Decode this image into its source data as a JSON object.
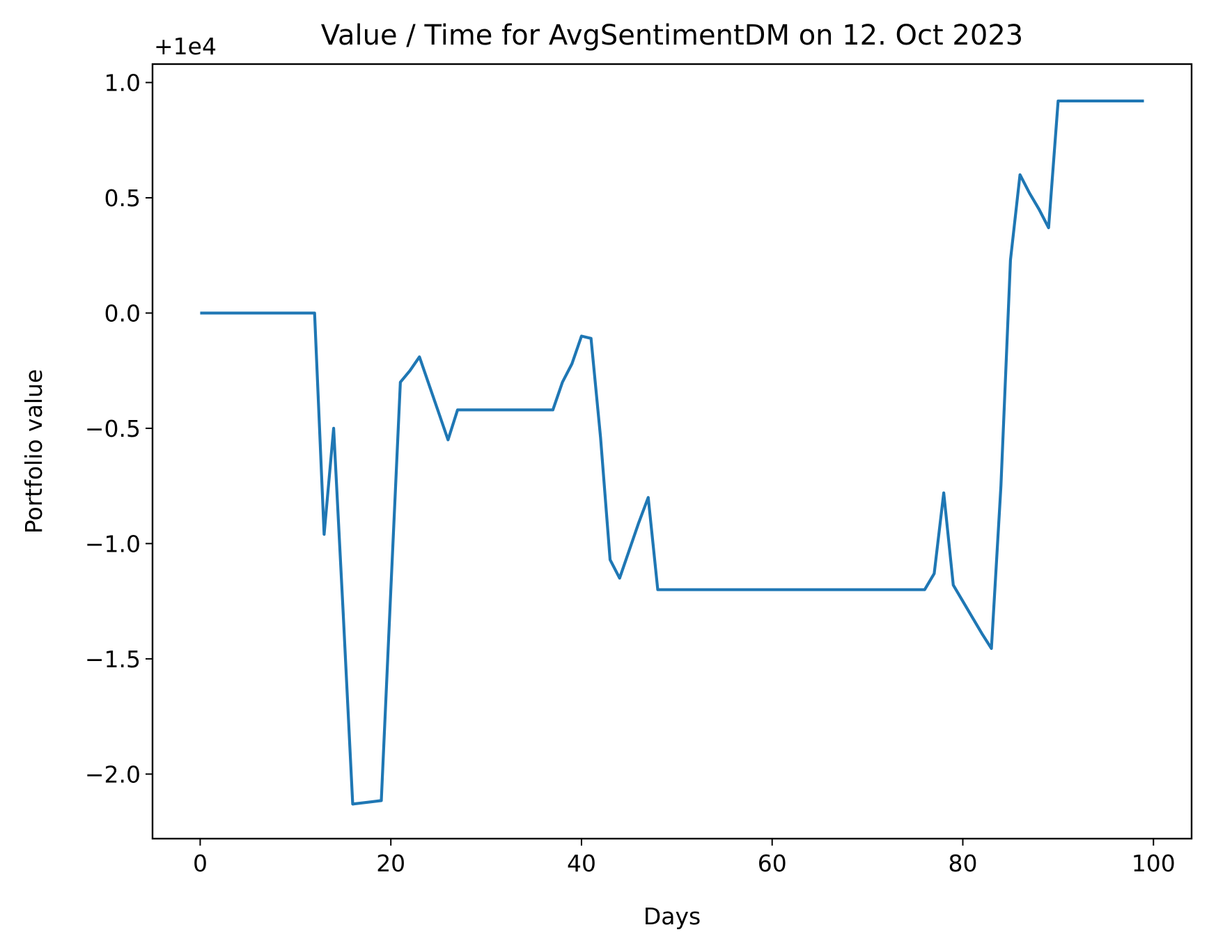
{
  "chart_data": {
    "type": "line",
    "title": "Value / Time for AvgSentimentDM on 12. Oct 2023",
    "xlabel": "Days",
    "ylabel": "Portfolio value",
    "y_offset_label": "+1e4",
    "xlim": [
      -5,
      104
    ],
    "ylim": [
      -2.28,
      1.08
    ],
    "x_ticks": [
      0,
      20,
      40,
      60,
      80,
      100
    ],
    "x_tick_labels": [
      "0",
      "20",
      "40",
      "60",
      "80",
      "100"
    ],
    "y_ticks": [
      1.0,
      0.5,
      0.0,
      -0.5,
      -1.0,
      -1.5,
      -2.0
    ],
    "y_tick_labels": [
      "1.0",
      "0.5",
      "0.0",
      "−0.5",
      "−1.0",
      "−1.5",
      "−2.0"
    ],
    "grid": false,
    "line_color": "#1f77b4",
    "series": [
      {
        "x": [
          0,
          12,
          13,
          14,
          15,
          16,
          17,
          18,
          19,
          20,
          21,
          22,
          23,
          24,
          25,
          26,
          27,
          37,
          38,
          39,
          40,
          41,
          42,
          43,
          44,
          45,
          46,
          47,
          48,
          76,
          77,
          78,
          79,
          80,
          81,
          82,
          83,
          84,
          85,
          86,
          87,
          88,
          89,
          90,
          99
        ],
        "values": [
          0,
          0,
          -0.96,
          -0.5,
          -1.3,
          -2.13,
          -2.125,
          -2.12,
          -2.115,
          -1.2,
          -0.3,
          -0.25,
          -0.19,
          -0.31,
          -0.43,
          -0.55,
          -0.42,
          -0.42,
          -0.3,
          -0.22,
          -0.1,
          -0.11,
          -0.54,
          -1.07,
          -1.15,
          -1.03,
          -0.91,
          -0.8,
          -1.2,
          -1.2,
          -1.13,
          -0.78,
          -1.18,
          -1.25,
          -1.32,
          -1.39,
          -1.455,
          -0.75,
          0.23,
          0.6,
          0.52,
          0.45,
          0.37,
          0.92,
          0.92
        ]
      }
    ]
  }
}
